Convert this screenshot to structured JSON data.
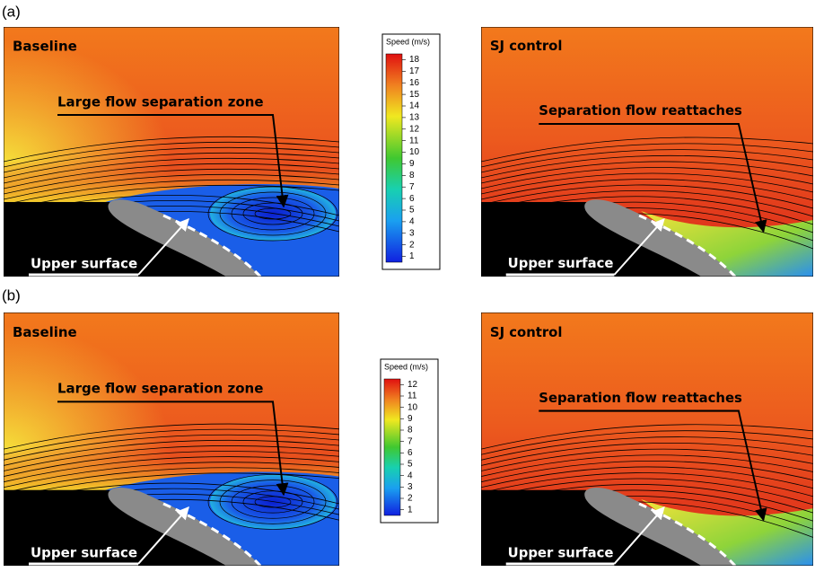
{
  "panels": [
    {
      "label": "(a)",
      "baseline": {
        "title": "Baseline",
        "annotation": "Large flow separation zone",
        "surface_label": "Upper surface"
      },
      "colorbar": {
        "title": "Speed (m/s)",
        "ticks": [
          18,
          17,
          16,
          15,
          14,
          13,
          12,
          11,
          10,
          9,
          8,
          7,
          6,
          5,
          4,
          3,
          2,
          1
        ]
      },
      "control": {
        "title": "SJ control",
        "annotation": "Separation flow reattaches",
        "surface_label": "Upper surface"
      }
    },
    {
      "label": "(b)",
      "baseline": {
        "title": "Baseline",
        "annotation": "Large flow separation zone",
        "surface_label": "Upper surface"
      },
      "colorbar": {
        "title": "Speed (m/s)",
        "ticks": [
          12,
          11,
          10,
          9,
          8,
          7,
          6,
          5,
          4,
          3,
          2,
          1
        ]
      },
      "control": {
        "title": "SJ control",
        "annotation": "Separation flow reattaches",
        "surface_label": "Upper surface"
      }
    }
  ]
}
